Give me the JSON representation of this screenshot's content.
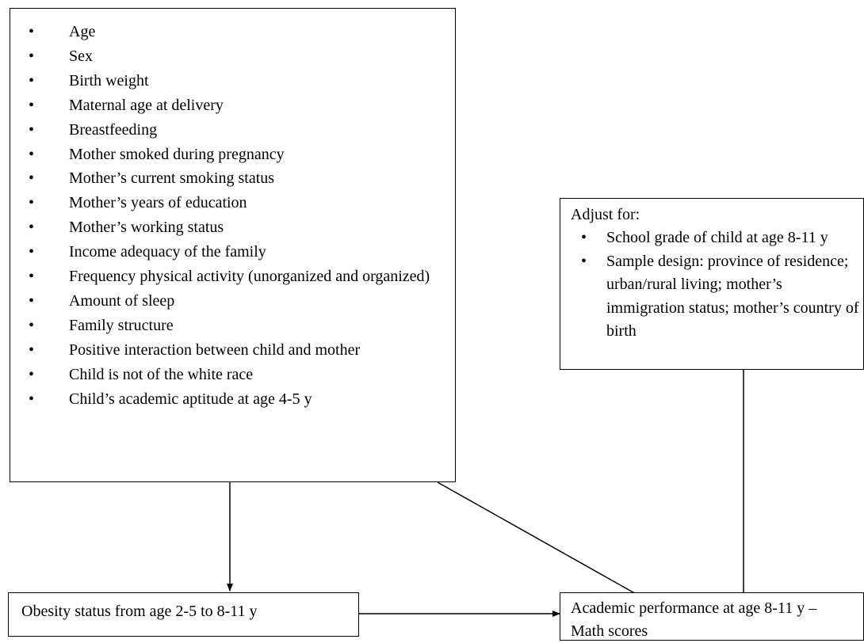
{
  "nodes": [
    {
      "items": [
        "Age",
        "Sex",
        "Birth weight",
        "Maternal age at delivery",
        "Breastfeeding",
        "Mother smoked during pregnancy",
        "Mother’s current smoking status",
        "Mother’s years of education",
        "Mother’s working status",
        "Income adequacy of the family",
        "Frequency physical activity (unorganized and organized)",
        "Amount of sleep",
        "Family structure",
        "Positive interaction between child and mother",
        "Child is not of the white race",
        "Child’s academic aptitude at age 4-5 y"
      ]
    },
    {
      "label": "Adjust for:",
      "items": [
        "School grade of child at age 8-11 y",
        "Sample design: province of residence; urban/rural living; mother’s immigration status; mother’s country of birth"
      ]
    },
    {
      "label": "Obesity status from age 2-5 to 8-11 y"
    },
    {
      "label": "Academic performance at age 8-11 y – Math scores"
    }
  ]
}
